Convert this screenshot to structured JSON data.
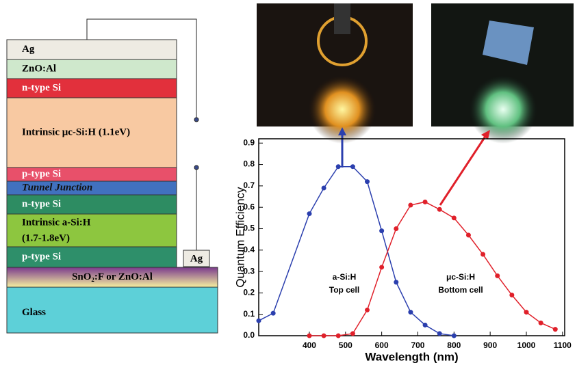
{
  "diagram": {
    "layers": [
      {
        "label": "Ag"
      },
      {
        "label": "ZnO:Al"
      },
      {
        "label": "n-type Si"
      },
      {
        "label": "Intrinsic μc-Si:H (1.1eV)"
      },
      {
        "label": "p-type Si"
      },
      {
        "label": "Tunnel Junction"
      },
      {
        "label": "n-type Si"
      },
      {
        "label": "Intrinsic a-Si:H",
        "label2": "(1.7-1.8eV)"
      },
      {
        "label": "p-type Si"
      },
      {
        "label": "SnO₂:F or ZnO:Al"
      },
      {
        "label": "Glass"
      }
    ],
    "contact": "Ag"
  },
  "chart_data": {
    "type": "line",
    "x_label": "Wavelength (nm)",
    "y_label": "Quantum Efficiency",
    "xlim": [
      260,
      1106
    ],
    "ylim": [
      0,
      0.92
    ],
    "xticks": [
      400,
      500,
      600,
      700,
      800,
      900,
      1000,
      1100
    ],
    "yticks": [
      {
        "value": 0,
        "label": "0.0"
      },
      0.1,
      0.2,
      0.3,
      0.4,
      0.5,
      0.6,
      0.7,
      0.8,
      0.9
    ],
    "series": [
      {
        "name": "a-Si:H",
        "color": "#2b3fae",
        "x": [
          260,
          300,
          400,
          440,
          480,
          520,
          560,
          600,
          640,
          680,
          720,
          760,
          800
        ],
        "values": [
          0.07,
          0.105,
          0.57,
          0.69,
          0.79,
          0.79,
          0.72,
          0.49,
          0.25,
          0.11,
          0.05,
          0.01,
          0.0
        ]
      },
      {
        "name": "μc-Si:H",
        "color": "#e0202a",
        "x": [
          400,
          440,
          480,
          520,
          560,
          600,
          640,
          680,
          720,
          760,
          800,
          840,
          880,
          920,
          960,
          1000,
          1040,
          1080
        ],
        "values": [
          0,
          0,
          0,
          0.01,
          0.12,
          0.32,
          0.5,
          0.61,
          0.625,
          0.59,
          0.55,
          0.47,
          0.38,
          0.28,
          0.19,
          0.11,
          0.06,
          0.03
        ]
      }
    ],
    "annotations": [
      "Top cell",
      "Bottom cell"
    ]
  }
}
